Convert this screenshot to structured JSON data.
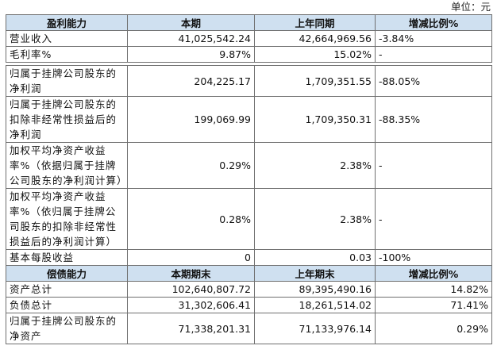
{
  "unit_label": "单位：元",
  "profit": {
    "headers": [
      "盈利能力",
      "本期",
      "上年同期",
      "增减比例%"
    ],
    "rows": [
      {
        "label": "营业收入",
        "current": "41,025,542.24",
        "previous": "42,664,969.56",
        "change": "-3.84%"
      },
      {
        "label": "毛利率%",
        "current": "9.87%",
        "previous": "15.02%",
        "change": "-"
      },
      {
        "label": "归属于挂牌公司股东的净利润",
        "current": "204,225.17",
        "previous": "1,709,351.55",
        "change": "-88.05%"
      },
      {
        "label": "归属于挂牌公司股东的扣除非经常性损益后的净利润",
        "current": "199,069.99",
        "previous": "1,709,350.31",
        "change": "-88.35%"
      },
      {
        "label": "加权平均净资产收益率%（依据归属于挂牌公司股东的净利润计算）",
        "current": "0.29%",
        "previous": "2.38%",
        "change": "-"
      },
      {
        "label": "加权平均净资产收益率%（依归属于挂牌公司股东的扣除非经常性损益后的净利润计算）",
        "current": "0.28%",
        "previous": "2.38%",
        "change": "-"
      },
      {
        "label": "基本每股收益",
        "current": "0",
        "previous": "0.03",
        "change": "-100%"
      }
    ]
  },
  "solvency": {
    "headers": [
      "偿债能力",
      "本期期末",
      "上年期末",
      "增减比例%"
    ],
    "rows": [
      {
        "label": "资产总计",
        "current": "102,640,807.72",
        "previous": "89,395,490.16",
        "change": "14.82%"
      },
      {
        "label": "负债总计",
        "current": "31,302,606.41",
        "previous": "18,261,514.02",
        "change": "71.41%"
      },
      {
        "label": "归属于挂牌公司股东的净资产",
        "current": "71,338,201.31",
        "previous": "71,133,976.14",
        "change": "0.29%"
      }
    ]
  }
}
